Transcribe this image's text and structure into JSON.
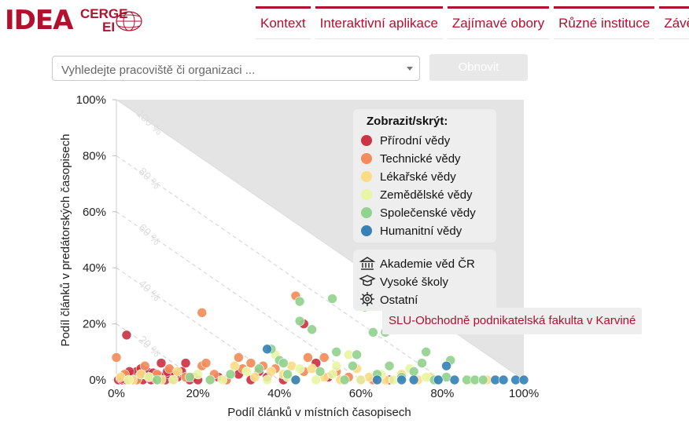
{
  "logo": {
    "main": "IDEA",
    "sup": "CERGE",
    "sub": "EI"
  },
  "nav": {
    "items": [
      "Kontext",
      "Interaktivní aplikace",
      "Zajímavé obory",
      "Různé instituce",
      "Závě"
    ]
  },
  "search": {
    "placeholder": "Vyhledejte pracoviště či organizaci ..."
  },
  "refresh_button": "Obnovit",
  "tooltip": "SLU-Obchodně podnikatelská fakulta v Karviné",
  "chart_data": {
    "type": "scatter",
    "xlabel": "Podíl článků v místních časopisech",
    "ylabel": "Podíl článků v predátorských časopisech",
    "xlim": [
      0,
      100
    ],
    "ylim": [
      0,
      100
    ],
    "x_ticks": [
      "0%",
      "20%",
      "40%",
      "60%",
      "80%",
      "100%"
    ],
    "y_ticks": [
      "0%",
      "20%",
      "40%",
      "60%",
      "80%",
      "100%"
    ],
    "diagonal_labels": [
      "20 %",
      "40 %",
      "60 %",
      "80 %",
      "100 %"
    ],
    "legend": {
      "title": "Zobrazit/skrýt:",
      "position": "top-right",
      "series": [
        {
          "name": "Přírodní vědy",
          "color": "#cc3344"
        },
        {
          "name": "Technické vědy",
          "color": "#f28c5a"
        },
        {
          "name": "Lékařské vědy",
          "color": "#fbdc86"
        },
        {
          "name": "Zemědělské vědy",
          "color": "#e8f5a3"
        },
        {
          "name": "Společenské vědy",
          "color": "#92d28f"
        },
        {
          "name": "Humanitní vědy",
          "color": "#3682b6"
        }
      ],
      "types": [
        {
          "name": "Akademie věd ČR",
          "icon": "institution-icon"
        },
        {
          "name": "Vysoké školy",
          "icon": "graduation-cap-icon"
        },
        {
          "name": "Ostatní",
          "icon": "gear-icon"
        }
      ]
    },
    "points": [
      {
        "s": 0,
        "x": 0.5,
        "y": 0
      },
      {
        "s": 0,
        "x": 1,
        "y": 0.5
      },
      {
        "s": 0,
        "x": 1.5,
        "y": 0
      },
      {
        "s": 0,
        "x": 2,
        "y": 1
      },
      {
        "s": 0,
        "x": 2.5,
        "y": 0
      },
      {
        "s": 0,
        "x": 3,
        "y": 1.5
      },
      {
        "s": 0,
        "x": 3.5,
        "y": 0
      },
      {
        "s": 0,
        "x": 4,
        "y": 2
      },
      {
        "s": 0,
        "x": 4.5,
        "y": 0.5
      },
      {
        "s": 0,
        "x": 5,
        "y": 3
      },
      {
        "s": 0,
        "x": 5.5,
        "y": 1
      },
      {
        "s": 0,
        "x": 6,
        "y": 4
      },
      {
        "s": 0,
        "x": 6.5,
        "y": 0
      },
      {
        "s": 0,
        "x": 7,
        "y": 2
      },
      {
        "s": 0,
        "x": 7.5,
        "y": 3
      },
      {
        "s": 0,
        "x": 8,
        "y": 1
      },
      {
        "s": 0,
        "x": 8.5,
        "y": 0
      },
      {
        "s": 0,
        "x": 9,
        "y": 2.5
      },
      {
        "s": 0,
        "x": 10,
        "y": 0
      },
      {
        "s": 0,
        "x": 10.5,
        "y": 1.5
      },
      {
        "s": 0,
        "x": 11,
        "y": 6
      },
      {
        "s": 0,
        "x": 12,
        "y": 0
      },
      {
        "s": 0,
        "x": 13,
        "y": 2
      },
      {
        "s": 0,
        "x": 14,
        "y": 0
      },
      {
        "s": 0,
        "x": 15,
        "y": 1
      },
      {
        "s": 0,
        "x": 16,
        "y": 3
      },
      {
        "s": 0,
        "x": 17,
        "y": 6
      },
      {
        "s": 0,
        "x": 18,
        "y": 0
      },
      {
        "s": 0,
        "x": 19,
        "y": 1
      },
      {
        "s": 0,
        "x": 20,
        "y": 0
      },
      {
        "s": 0,
        "x": 2.5,
        "y": 16
      },
      {
        "s": 0,
        "x": 1.5,
        "y": 0.5
      },
      {
        "s": 0,
        "x": 3.2,
        "y": 3
      },
      {
        "s": 0,
        "x": 4.2,
        "y": 0
      },
      {
        "s": 0,
        "x": 5.2,
        "y": 0.5
      },
      {
        "s": 0,
        "x": 6.2,
        "y": 2
      },
      {
        "s": 0,
        "x": 9.5,
        "y": 0.5
      },
      {
        "s": 0,
        "x": 12.5,
        "y": 3
      },
      {
        "s": 0,
        "x": 14.5,
        "y": 2
      },
      {
        "s": 0,
        "x": 25,
        "y": 1
      },
      {
        "s": 0,
        "x": 27,
        "y": 0
      },
      {
        "s": 0,
        "x": 30,
        "y": 2
      },
      {
        "s": 0,
        "x": 33,
        "y": 0
      },
      {
        "s": 0,
        "x": 35,
        "y": 3
      },
      {
        "s": 0,
        "x": 41,
        "y": 0
      },
      {
        "s": 0,
        "x": 46,
        "y": 20
      },
      {
        "s": 0,
        "x": 49,
        "y": 6
      },
      {
        "s": 0,
        "x": 52,
        "y": 1
      },
      {
        "s": 0,
        "x": 60,
        "y": 0
      },
      {
        "s": 0,
        "x": 67,
        "y": 0
      },
      {
        "s": 0,
        "x": 37,
        "y": 1
      },
      {
        "s": 1,
        "x": 0,
        "y": 8
      },
      {
        "s": 1,
        "x": 2,
        "y": 2
      },
      {
        "s": 1,
        "x": 5,
        "y": 0
      },
      {
        "s": 1,
        "x": 7,
        "y": 5
      },
      {
        "s": 1,
        "x": 10,
        "y": 2
      },
      {
        "s": 1,
        "x": 13,
        "y": 4
      },
      {
        "s": 1,
        "x": 17,
        "y": 1
      },
      {
        "s": 1,
        "x": 21,
        "y": 24
      },
      {
        "s": 1,
        "x": 21,
        "y": 5
      },
      {
        "s": 1,
        "x": 22,
        "y": 6
      },
      {
        "s": 1,
        "x": 24,
        "y": 2
      },
      {
        "s": 1,
        "x": 27,
        "y": 0
      },
      {
        "s": 1,
        "x": 30,
        "y": 8
      },
      {
        "s": 1,
        "x": 31,
        "y": 4
      },
      {
        "s": 1,
        "x": 36,
        "y": 5
      },
      {
        "s": 1,
        "x": 39,
        "y": 4
      },
      {
        "s": 1,
        "x": 44,
        "y": 30
      },
      {
        "s": 1,
        "x": 47,
        "y": 8
      },
      {
        "s": 1,
        "x": 51,
        "y": 8
      },
      {
        "s": 1,
        "x": 54,
        "y": 3
      },
      {
        "s": 1,
        "x": 57,
        "y": 1
      },
      {
        "s": 1,
        "x": 63,
        "y": 0
      },
      {
        "s": 1,
        "x": 46,
        "y": 3
      },
      {
        "s": 1,
        "x": 33,
        "y": 6
      },
      {
        "s": 2,
        "x": 1,
        "y": 1
      },
      {
        "s": 2,
        "x": 4,
        "y": 0
      },
      {
        "s": 2,
        "x": 6,
        "y": 2
      },
      {
        "s": 2,
        "x": 11,
        "y": 0
      },
      {
        "s": 2,
        "x": 15,
        "y": 3
      },
      {
        "s": 2,
        "x": 23,
        "y": 0
      },
      {
        "s": 2,
        "x": 29,
        "y": 5
      },
      {
        "s": 2,
        "x": 34,
        "y": 1
      },
      {
        "s": 2,
        "x": 38,
        "y": 3
      },
      {
        "s": 2,
        "x": 41,
        "y": 2
      },
      {
        "s": 2,
        "x": 44,
        "y": 0
      },
      {
        "s": 2,
        "x": 48,
        "y": 4
      },
      {
        "s": 2,
        "x": 51,
        "y": 1
      },
      {
        "s": 2,
        "x": 55,
        "y": 0
      },
      {
        "s": 2,
        "x": 59,
        "y": 4
      },
      {
        "s": 2,
        "x": 62,
        "y": 1
      },
      {
        "s": 2,
        "x": 66,
        "y": 0
      },
      {
        "s": 2,
        "x": 70,
        "y": 2
      },
      {
        "s": 2,
        "x": 74,
        "y": 0
      },
      {
        "s": 2,
        "x": 77,
        "y": 1
      },
      {
        "s": 2,
        "x": 91,
        "y": 0
      },
      {
        "s": 2,
        "x": 43,
        "y": 5
      },
      {
        "s": 3,
        "x": 3,
        "y": 0
      },
      {
        "s": 3,
        "x": 8,
        "y": 1
      },
      {
        "s": 3,
        "x": 14,
        "y": 0
      },
      {
        "s": 3,
        "x": 20,
        "y": 2
      },
      {
        "s": 3,
        "x": 26,
        "y": 0
      },
      {
        "s": 3,
        "x": 32,
        "y": 3
      },
      {
        "s": 3,
        "x": 37,
        "y": 0
      },
      {
        "s": 3,
        "x": 39,
        "y": 9
      },
      {
        "s": 3,
        "x": 42,
        "y": 1
      },
      {
        "s": 3,
        "x": 45,
        "y": 4
      },
      {
        "s": 3,
        "x": 49,
        "y": 0
      },
      {
        "s": 3,
        "x": 53,
        "y": 2
      },
      {
        "s": 3,
        "x": 57,
        "y": 9
      },
      {
        "s": 3,
        "x": 60,
        "y": 0
      },
      {
        "s": 3,
        "x": 65,
        "y": 2
      },
      {
        "s": 3,
        "x": 68,
        "y": 0
      },
      {
        "s": 3,
        "x": 72,
        "y": 4
      },
      {
        "s": 3,
        "x": 76,
        "y": 1
      },
      {
        "s": 3,
        "x": 79,
        "y": 0
      },
      {
        "s": 3,
        "x": 87,
        "y": 0
      },
      {
        "s": 3,
        "x": 54,
        "y": 5
      },
      {
        "s": 4,
        "x": 10,
        "y": 0
      },
      {
        "s": 4,
        "x": 18,
        "y": 1
      },
      {
        "s": 4,
        "x": 23,
        "y": 0
      },
      {
        "s": 4,
        "x": 28,
        "y": 2
      },
      {
        "s": 4,
        "x": 35,
        "y": 4
      },
      {
        "s": 4,
        "x": 38,
        "y": 11
      },
      {
        "s": 4,
        "x": 40,
        "y": 7
      },
      {
        "s": 4,
        "x": 42,
        "y": 2
      },
      {
        "s": 4,
        "x": 45,
        "y": 28
      },
      {
        "s": 4,
        "x": 45,
        "y": 21
      },
      {
        "s": 4,
        "x": 48,
        "y": 18
      },
      {
        "s": 4,
        "x": 50,
        "y": 3
      },
      {
        "s": 4,
        "x": 53,
        "y": 29
      },
      {
        "s": 4,
        "x": 54,
        "y": 10
      },
      {
        "s": 4,
        "x": 56,
        "y": 0
      },
      {
        "s": 4,
        "x": 58,
        "y": 5
      },
      {
        "s": 4,
        "x": 61,
        "y": 26
      },
      {
        "s": 4,
        "x": 63,
        "y": 17
      },
      {
        "s": 4,
        "x": 66,
        "y": 17
      },
      {
        "s": 4,
        "x": 64,
        "y": 2
      },
      {
        "s": 4,
        "x": 67,
        "y": 5
      },
      {
        "s": 4,
        "x": 70,
        "y": 1
      },
      {
        "s": 4,
        "x": 73,
        "y": 3
      },
      {
        "s": 4,
        "x": 75,
        "y": 6
      },
      {
        "s": 4,
        "x": 76,
        "y": 10
      },
      {
        "s": 4,
        "x": 78,
        "y": 0
      },
      {
        "s": 4,
        "x": 81,
        "y": 1
      },
      {
        "s": 4,
        "x": 82,
        "y": 7
      },
      {
        "s": 4,
        "x": 86,
        "y": 0
      },
      {
        "s": 4,
        "x": 88,
        "y": 0
      },
      {
        "s": 4,
        "x": 90,
        "y": 0
      },
      {
        "s": 4,
        "x": 41,
        "y": 6
      },
      {
        "s": 4,
        "x": 59,
        "y": 9
      },
      {
        "s": 5,
        "x": 37,
        "y": 11
      },
      {
        "s": 5,
        "x": 44,
        "y": 0
      },
      {
        "s": 5,
        "x": 64,
        "y": 0
      },
      {
        "s": 5,
        "x": 70,
        "y": 0
      },
      {
        "s": 5,
        "x": 73,
        "y": 0
      },
      {
        "s": 5,
        "x": 79,
        "y": 0
      },
      {
        "s": 5,
        "x": 81,
        "y": 5
      },
      {
        "s": 5,
        "x": 83,
        "y": 0
      },
      {
        "s": 5,
        "x": 93,
        "y": 0
      },
      {
        "s": 5,
        "x": 95,
        "y": 0
      },
      {
        "s": 5,
        "x": 98,
        "y": 0
      },
      {
        "s": 5,
        "x": 100,
        "y": 0
      }
    ]
  }
}
